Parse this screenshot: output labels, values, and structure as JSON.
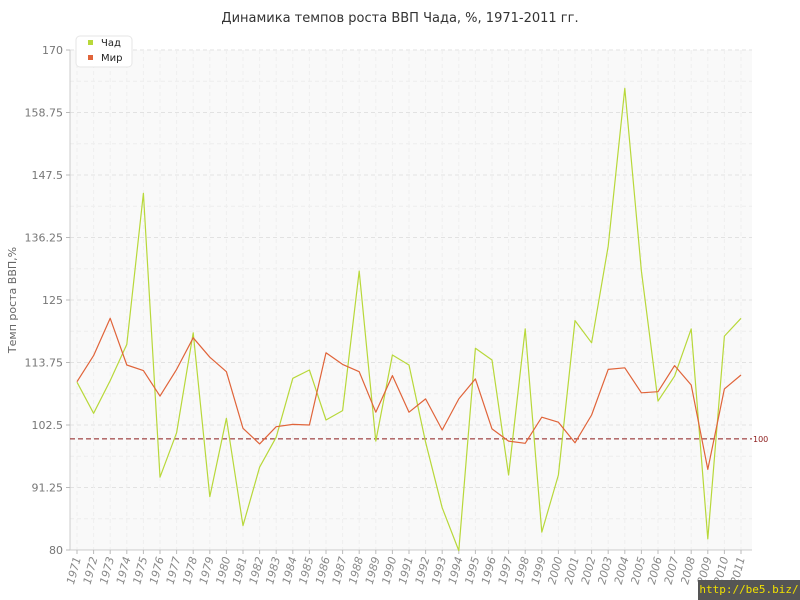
{
  "chart_data": {
    "type": "line",
    "title": "Динамика темпов роста ВВП Чада, %, 1971-2011 гг.",
    "ylabel": "Темп роста ВВП,%",
    "xlabel": "",
    "ylim": [
      80,
      170
    ],
    "yticks": [
      "80",
      "91.25",
      "102.5",
      "113.75",
      "125",
      "136.25",
      "147.5",
      "158.75",
      "170"
    ],
    "x": [
      "1971",
      "1972",
      "1973",
      "1974",
      "1975",
      "1976",
      "1977",
      "1978",
      "1979",
      "1980",
      "1981",
      "1982",
      "1983",
      "1984",
      "1985",
      "1986",
      "1987",
      "1988",
      "1989",
      "1990",
      "1991",
      "1992",
      "1993",
      "1994",
      "1995",
      "1996",
      "1997",
      "1998",
      "1999",
      "2000",
      "2001",
      "2002",
      "2003",
      "2004",
      "2005",
      "2006",
      "2007",
      "2008",
      "2009",
      "2010",
      "2011"
    ],
    "series": [
      {
        "name": "Чад",
        "color": "#b8d83a",
        "values": [
          110.2,
          104.6,
          110.5,
          117,
          144.2,
          93.1,
          101.1,
          119.1,
          89.6,
          103.7,
          84.4,
          94.9,
          100.3,
          110.9,
          112.4,
          103.4,
          105.1,
          130.2,
          99.6,
          115.1,
          113.3,
          99.4,
          87.6,
          79.9,
          116.3,
          114.2,
          93.5,
          119.8,
          83.2,
          93.5,
          121.3,
          117.3,
          134.7,
          163.1,
          130.2,
          106.8,
          111.3,
          119.8,
          82,
          118.5,
          121.7
        ]
      },
      {
        "name": "Мир",
        "color": "#e0643a",
        "values": [
          110.3,
          115,
          121.7,
          113.3,
          112.3,
          107.7,
          112.5,
          118.2,
          114.7,
          112.1,
          101.9,
          99.1,
          102.2,
          102.6,
          102.5,
          115.5,
          113.4,
          112.1,
          104.8,
          111.4,
          104.8,
          107.2,
          101.6,
          107.2,
          110.8,
          101.8,
          99.6,
          99.2,
          103.9,
          103,
          99.3,
          104.3,
          112.5,
          112.8,
          108.3,
          108.5,
          113.2,
          109.7,
          94.5,
          109,
          111.5
        ]
      }
    ],
    "reference_line": {
      "value": 100,
      "label": "100",
      "color": "#8b1a1a"
    },
    "grid": true,
    "legend_position": "top-left"
  },
  "watermark": "http://be5.biz/"
}
